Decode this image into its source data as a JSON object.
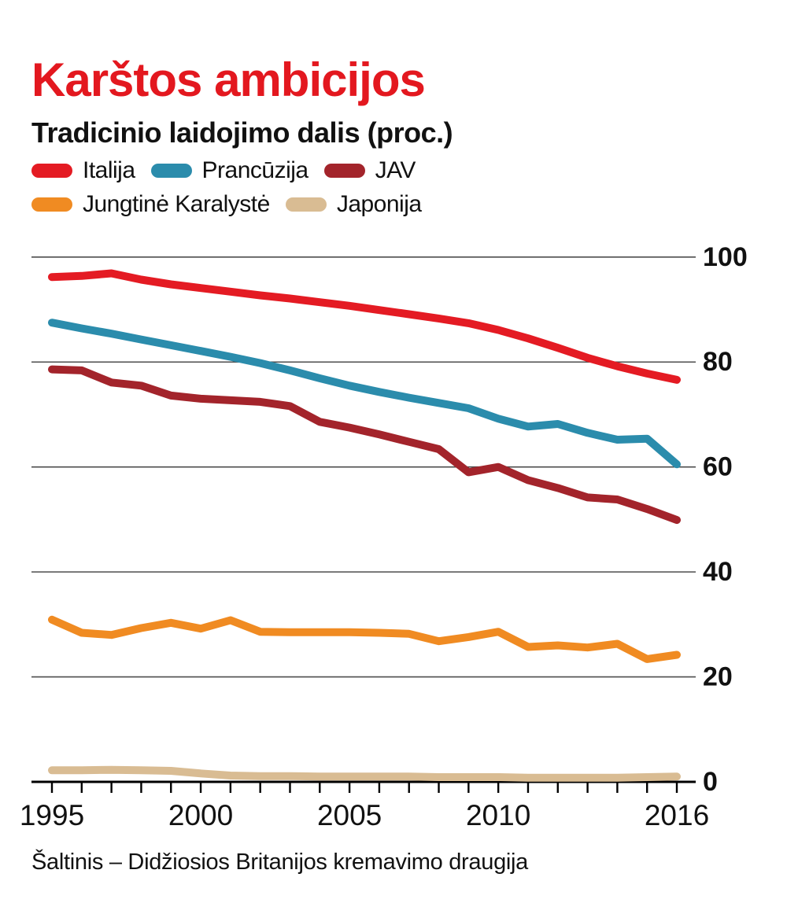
{
  "page": {
    "title": "Karštos ambicijos",
    "subtitle": "Tradicinio laidojimo dalis (proc.)",
    "source": "Šaltinis – Didžiosios Britanijos kremavimo draugija"
  },
  "colors": {
    "title_red": "#e3181f",
    "text": "#111111",
    "gridline": "#4d4d4d",
    "axis": "#000000"
  },
  "chart_data": {
    "type": "line",
    "title": "Karštos ambicijos",
    "subtitle": "Tradicinio laidojimo dalis (proc.)",
    "xlabel": "",
    "ylabel": "Tradicinio laidojimo dalis (proc.)",
    "x": [
      1995,
      1996,
      1997,
      1998,
      1999,
      2000,
      2001,
      2002,
      2003,
      2004,
      2005,
      2006,
      2007,
      2008,
      2009,
      2010,
      2011,
      2012,
      2013,
      2014,
      2015,
      2016
    ],
    "xtick_labels": [
      "1995",
      "2000",
      "2005",
      "2010",
      "2016"
    ],
    "xtick_years": [
      1995,
      2000,
      2005,
      2010,
      2016
    ],
    "yticks": [
      0,
      20,
      40,
      60,
      80,
      100
    ],
    "ylim": [
      0,
      100
    ],
    "grid": "horizontal",
    "legend_position": "top",
    "series": [
      {
        "name": "Italija",
        "color": "#e41b23",
        "values": [
          96.2,
          96.4,
          96.9,
          95.7,
          94.8,
          94.1,
          93.4,
          92.7,
          92.1,
          91.4,
          90.7,
          89.9,
          89.1,
          88.3,
          87.4,
          86.1,
          84.5,
          82.7,
          80.8,
          79.2,
          77.8,
          76.6
        ]
      },
      {
        "name": "Prancūzija",
        "color": "#2b8cac",
        "values": [
          87.5,
          86.4,
          85.4,
          84.3,
          83.2,
          82.1,
          81.0,
          79.8,
          78.4,
          76.9,
          75.5,
          74.3,
          73.2,
          72.2,
          71.2,
          69.2,
          67.7,
          68.2,
          66.5,
          65.2,
          65.4,
          60.5
        ]
      },
      {
        "name": "JAV",
        "color": "#a3242b",
        "values": [
          78.6,
          78.4,
          76.1,
          75.5,
          73.6,
          73.0,
          72.7,
          72.4,
          71.6,
          68.6,
          67.5,
          66.2,
          64.8,
          63.4,
          59.0,
          60.0,
          57.5,
          56.0,
          54.2,
          53.8,
          52.0,
          49.9
        ]
      },
      {
        "name": "Jungtinė Karalystė",
        "color": "#f08b22",
        "values": [
          30.9,
          28.4,
          28.0,
          29.3,
          30.3,
          29.2,
          30.8,
          28.6,
          28.5,
          28.5,
          28.5,
          28.4,
          28.2,
          26.8,
          27.6,
          28.6,
          25.7,
          26.0,
          25.6,
          26.3,
          23.4,
          24.2
        ]
      },
      {
        "name": "Japonija",
        "color": "#d9bc93",
        "values": [
          2.2,
          2.2,
          2.3,
          2.2,
          2.1,
          1.6,
          1.2,
          1.1,
          1.1,
          1.0,
          1.0,
          1.0,
          1.0,
          0.9,
          0.9,
          0.9,
          0.8,
          0.8,
          0.8,
          0.8,
          0.9,
          1.0
        ]
      }
    ]
  },
  "legend": {
    "rows": [
      [
        0,
        1,
        2
      ],
      [
        3,
        4
      ]
    ]
  }
}
